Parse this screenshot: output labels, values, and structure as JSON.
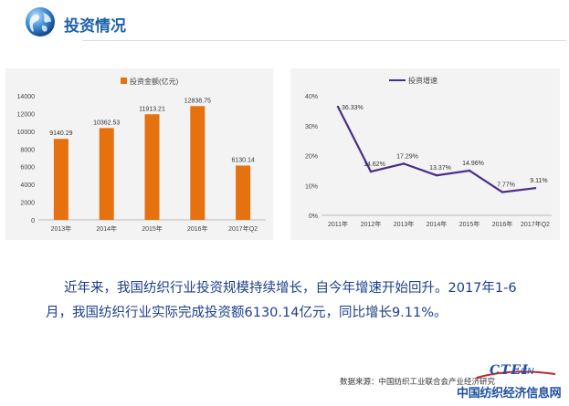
{
  "header": {
    "title": "投资情况"
  },
  "chart_data": [
    {
      "type": "bar",
      "legend": "投资金额(亿元)",
      "legend_position": "top-center",
      "categories": [
        "2013年",
        "2014年",
        "2015年",
        "2016年",
        "2017年Q2"
      ],
      "series": [
        {
          "name": "投资金额(亿元)",
          "values": [
            9140.29,
            10362.53,
            11913.21,
            12838.75,
            6130.14
          ]
        }
      ],
      "data_labels": [
        "9140.29",
        "10362.53",
        "11913.21",
        "12838.75",
        "6130.14"
      ],
      "y_ticks": [
        "0",
        "2000",
        "4000",
        "6000",
        "8000",
        "10000",
        "12000",
        "14000"
      ],
      "ylim": [
        0,
        14000
      ],
      "grid": false,
      "bar_color": "#e6720f"
    },
    {
      "type": "line",
      "legend": "投资增速",
      "legend_position": "top-center",
      "categories": [
        "2011年",
        "2012年",
        "2013年",
        "2014年",
        "2015年",
        "2016年",
        "2017年Q2"
      ],
      "series": [
        {
          "name": "投资增速",
          "values": [
            36.33,
            14.62,
            17.29,
            13.37,
            14.96,
            7.77,
            9.11
          ]
        }
      ],
      "data_labels": [
        "36.33%",
        "14.62%",
        "17.29%",
        "13.37%",
        "14.96%",
        "7.77%",
        "9.11%"
      ],
      "y_ticks": [
        "0%",
        "10%",
        "20%",
        "30%",
        "40%"
      ],
      "ylim": [
        0,
        40
      ],
      "grid": false,
      "line_color": "#4b2d8a"
    }
  ],
  "paragraph": {
    "text": "近年来，我国纺织行业投资规模持续增长，自今年增速开始回升。2017年1-6月，我国纺织行业实际完成投资额6130.14亿元，同比增长9.11%。"
  },
  "source": {
    "text": "数据来源：中国纺织工业联合会产业经济研究"
  },
  "logo": {
    "top": "CTEI",
    "cn": "CN",
    "text": "中国纺织经济信息网"
  },
  "colors": {
    "title": "#1c63a8",
    "paragraph": "#1c3e8c",
    "bar": "#e6720f",
    "line": "#4b2d8a"
  }
}
